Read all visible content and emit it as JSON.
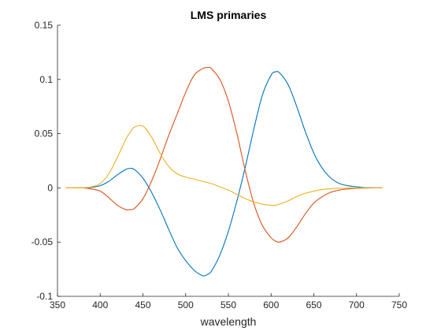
{
  "chart_data": {
    "type": "line",
    "title": "LMS primaries",
    "xlabel": "wavelength",
    "ylabel": "",
    "xlim": [
      350,
      750
    ],
    "ylim": [
      -0.1,
      0.15
    ],
    "xticks": [
      350,
      400,
      450,
      500,
      550,
      600,
      650,
      700,
      750
    ],
    "xtick_labels": [
      "350",
      "400",
      "450",
      "500",
      "550",
      "600",
      "650",
      "700",
      "750"
    ],
    "yticks": [
      -0.1,
      -0.05,
      0,
      0.05,
      0.1,
      0.15
    ],
    "ytick_labels": [
      "-0.1",
      "-0.05",
      "0",
      "0.05",
      "0.1",
      "0.15"
    ],
    "grid": false,
    "legend": "none",
    "x": [
      360,
      370,
      380,
      390,
      400,
      410,
      420,
      430,
      435,
      440,
      450,
      460,
      470,
      480,
      490,
      500,
      510,
      520,
      525,
      530,
      540,
      550,
      560,
      570,
      580,
      590,
      600,
      605,
      610,
      620,
      630,
      640,
      650,
      660,
      670,
      680,
      690,
      700,
      710,
      720,
      730
    ],
    "series": [
      {
        "color": "#0072BD",
        "values": [
          0,
          0,
          0,
          0.0005,
          0.002,
          0.006,
          0.012,
          0.017,
          0.018,
          0.017,
          0.009,
          -0.004,
          -0.02,
          -0.038,
          -0.055,
          -0.067,
          -0.076,
          -0.081,
          -0.08,
          -0.077,
          -0.062,
          -0.04,
          -0.012,
          0.02,
          0.055,
          0.086,
          0.104,
          0.107,
          0.106,
          0.095,
          0.075,
          0.052,
          0.032,
          0.018,
          0.009,
          0.004,
          0.002,
          0.001,
          0.0003,
          0.0001,
          0
        ]
      },
      {
        "color": "#D95319",
        "values": [
          0,
          0,
          0,
          -0.001,
          -0.003,
          -0.009,
          -0.016,
          -0.02,
          -0.02,
          -0.019,
          -0.01,
          0.006,
          0.026,
          0.048,
          0.068,
          0.088,
          0.104,
          0.11,
          0.111,
          0.11,
          0.1,
          0.08,
          0.05,
          0.015,
          -0.015,
          -0.035,
          -0.046,
          -0.049,
          -0.05,
          -0.046,
          -0.036,
          -0.024,
          -0.014,
          -0.008,
          -0.004,
          -0.002,
          -0.001,
          -0.0004,
          -0.0002,
          0,
          0
        ]
      },
      {
        "color": "#EDB120",
        "values": [
          0,
          0,
          0,
          0.001,
          0.004,
          0.013,
          0.028,
          0.045,
          0.051,
          0.056,
          0.057,
          0.047,
          0.032,
          0.02,
          0.013,
          0.01,
          0.008,
          0.006,
          0.005,
          0.004,
          0.001,
          -0.002,
          -0.006,
          -0.01,
          -0.013,
          -0.015,
          -0.016,
          -0.016,
          -0.015,
          -0.012,
          -0.008,
          -0.005,
          -0.003,
          -0.0015,
          -0.0008,
          -0.0004,
          -0.0002,
          -0.0001,
          0,
          0,
          0
        ]
      }
    ]
  }
}
